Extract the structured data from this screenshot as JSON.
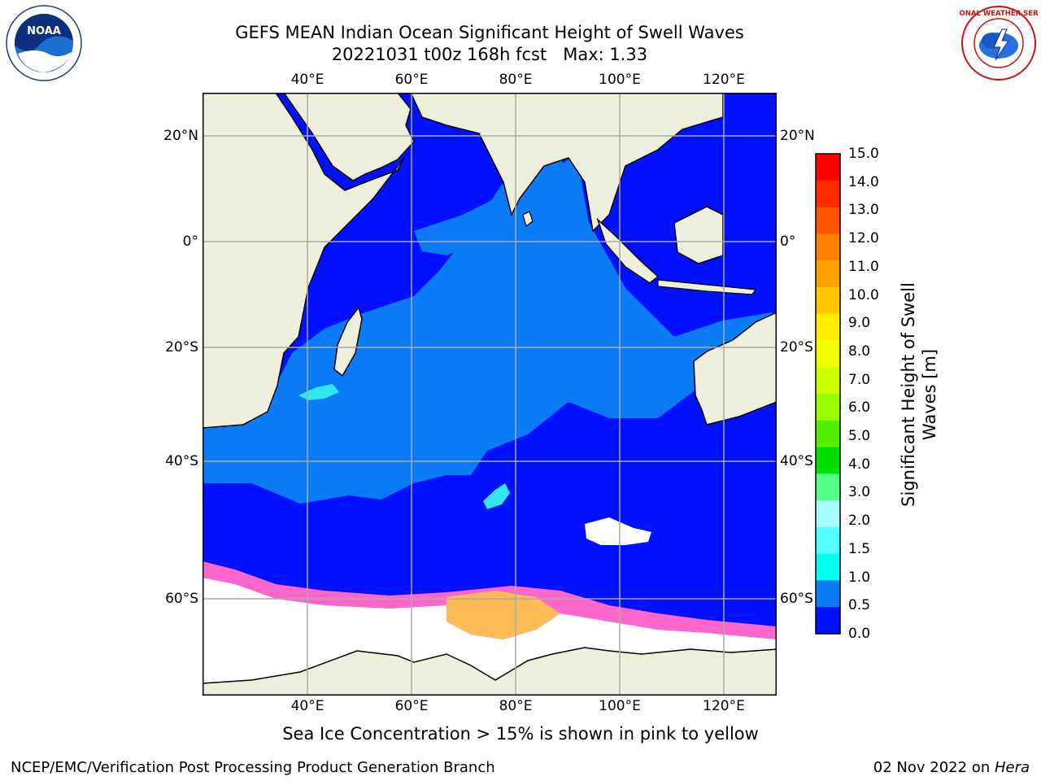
{
  "title": {
    "line1": "GEFS MEAN Indian Ocean Significant Height of Swell Waves",
    "line2": "20221031 t00z 168h fcst   Max: 1.33"
  },
  "logos": {
    "left": {
      "name": "NOAA",
      "ring_text": "NATIONAL OCEANIC AND ATMOSPHERIC ADMINISTRATION · U.S. DEPARTMENT OF COMMERCE"
    },
    "right": {
      "name": "NATIONAL WEATHER SERVICE"
    }
  },
  "map": {
    "lon_ticks": [
      "40°E",
      "60°E",
      "80°E",
      "100°E",
      "120°E"
    ],
    "lat_ticks_left": [
      "20°N",
      "0°",
      "20°S",
      "40°S",
      "60°S"
    ],
    "lat_ticks_right": [
      "20°N",
      "0°",
      "20°S",
      "40°S",
      "60°S"
    ],
    "grid": true,
    "colors": {
      "land": "#eeeedd",
      "sea_deep": "#0011ff",
      "sea_mid": "#0b7cf5",
      "sea_high": "#33e6ee",
      "ice_pink": "#ff66cc",
      "ice_orange": "#ffbb55",
      "ice_magenta": "#ff33ff"
    }
  },
  "colorbar": {
    "title": "Significant Height of Swell Waves [m]",
    "labels": [
      "15.0",
      "14.0",
      "13.0",
      "12.0",
      "11.0",
      "10.0",
      "9.0",
      "8.0",
      "7.0",
      "6.0",
      "5.0",
      "4.0",
      "3.0",
      "2.0",
      "1.5",
      "1.0",
      "0.5",
      "0.0"
    ],
    "colors": [
      "#ff0000",
      "#ff2a00",
      "#ff5500",
      "#ff7f00",
      "#ffa000",
      "#ffc800",
      "#ffee00",
      "#eeff00",
      "#ccff00",
      "#99ff00",
      "#55ee00",
      "#00dd00",
      "#55ff88",
      "#aaffff",
      "#55ffff",
      "#00ffee",
      "#0b7cf5",
      "#0011ff"
    ]
  },
  "footnote": "Sea Ice Concentration > 15% is shown in pink to yellow",
  "credit_left": "NCEP/EMC/Verification Post Processing Product Generation Branch",
  "credit_right_prefix": "02 Nov 2022 on ",
  "credit_right_host": "Hera"
}
